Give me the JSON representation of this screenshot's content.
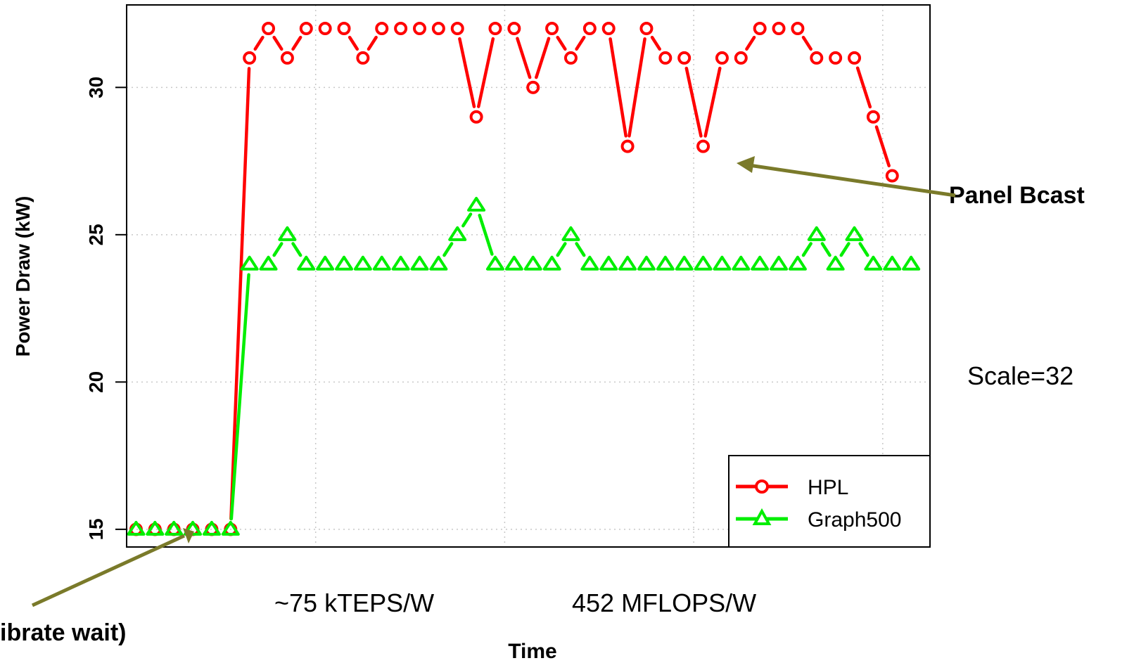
{
  "chart_data": {
    "type": "line",
    "xlabel": "Time",
    "ylabel": "Power Draw (kW)",
    "y_ticks": [
      "15",
      "20",
      "25",
      "30"
    ],
    "ylim": [
      14.4,
      32.8
    ],
    "xlim": [
      0.5,
      43
    ],
    "grid": true,
    "legend_position": "bottom-right",
    "x_grid_at": [
      10.5,
      20.5,
      30.5,
      40.5
    ],
    "series": [
      {
        "name": "HPL",
        "color": "#ff0000",
        "marker": "circle",
        "values": [
          15,
          15,
          15,
          15,
          15,
          15,
          31,
          32,
          31,
          32,
          32,
          32,
          31,
          32,
          32,
          32,
          32,
          32,
          29,
          32,
          32,
          30,
          32,
          31,
          32,
          32,
          28,
          32,
          31,
          31,
          28,
          31,
          31,
          32,
          32,
          32,
          31,
          31,
          31,
          29,
          27
        ]
      },
      {
        "name": "Graph500",
        "color": "#00ee00",
        "marker": "triangle",
        "values": [
          15,
          15,
          15,
          15,
          15,
          15,
          24,
          24,
          25,
          24,
          24,
          24,
          24,
          24,
          24,
          24,
          24,
          25,
          26,
          24,
          24,
          24,
          24,
          25,
          24,
          24,
          24,
          24,
          24,
          24,
          24,
          24,
          24,
          24,
          24,
          24,
          25,
          24,
          25,
          24,
          24,
          24
        ]
      }
    ],
    "annotations": {
      "panel_bcast": "Panel Bcast",
      "calibrate_wait": "ibrate wait)",
      "scale": "Scale=32",
      "kteps": "~75 kTEPS/W",
      "mflops": "452 MFLOPS/W"
    },
    "annotation_arrow_color": "#7a7a2a"
  }
}
